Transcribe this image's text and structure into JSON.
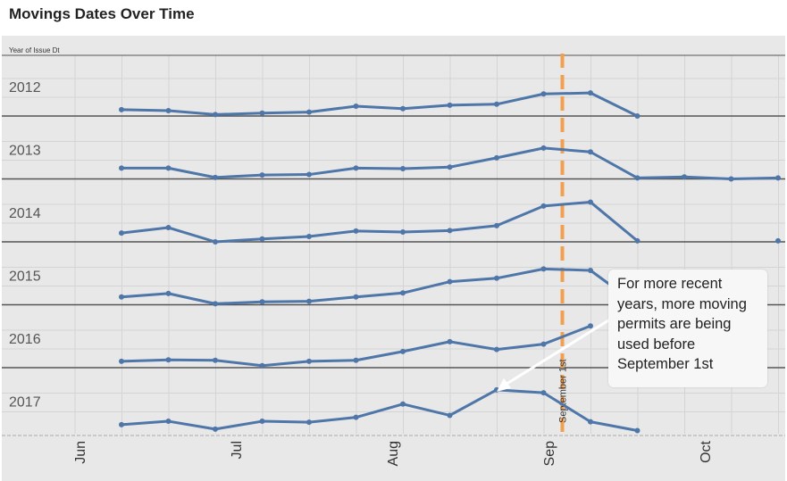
{
  "chart_data": {
    "type": "line",
    "title": "Movings Dates Over Time",
    "facet_header": "Year of Issue Dt",
    "x_ticks": [
      "Jun",
      "Jul",
      "Aug",
      "Sep",
      "Oct"
    ],
    "reference_line": {
      "x_index": 9.4,
      "label": "September 1st",
      "color": "#F0A050"
    },
    "annotation": "For more recent years, more moving permits are being used before September 1st",
    "line_color": "#4E76A8",
    "series": [
      {
        "name": "2012",
        "values": [
          0.13,
          0.11,
          0.03,
          0.06,
          0.08,
          0.2,
          0.15,
          0.22,
          0.24,
          0.45,
          0.47,
          0.0,
          null,
          null,
          null
        ]
      },
      {
        "name": "2013",
        "values": [
          0.22,
          0.22,
          0.03,
          0.08,
          0.09,
          0.22,
          0.21,
          0.24,
          0.43,
          0.63,
          0.55,
          0.02,
          0.04,
          0.0,
          0.02
        ]
      },
      {
        "name": "2014",
        "values": [
          0.18,
          0.29,
          0.0,
          0.06,
          0.11,
          0.22,
          0.2,
          0.23,
          0.33,
          0.73,
          0.81,
          0.02,
          null,
          null,
          0.02
        ]
      },
      {
        "name": "2015",
        "values": [
          0.16,
          0.23,
          0.02,
          0.06,
          0.07,
          0.16,
          0.24,
          0.47,
          0.54,
          0.73,
          0.7,
          0.0,
          null,
          null,
          null
        ]
      },
      {
        "name": "2016",
        "values": [
          0.13,
          0.16,
          0.15,
          0.04,
          0.13,
          0.15,
          0.33,
          0.53,
          0.37,
          0.48,
          0.85,
          null,
          null,
          null,
          null
        ]
      },
      {
        "name": "2017",
        "values": [
          0.12,
          0.19,
          0.03,
          0.19,
          0.17,
          0.27,
          0.54,
          0.31,
          0.83,
          0.77,
          0.18,
          0.0,
          null,
          null,
          null
        ]
      }
    ]
  }
}
